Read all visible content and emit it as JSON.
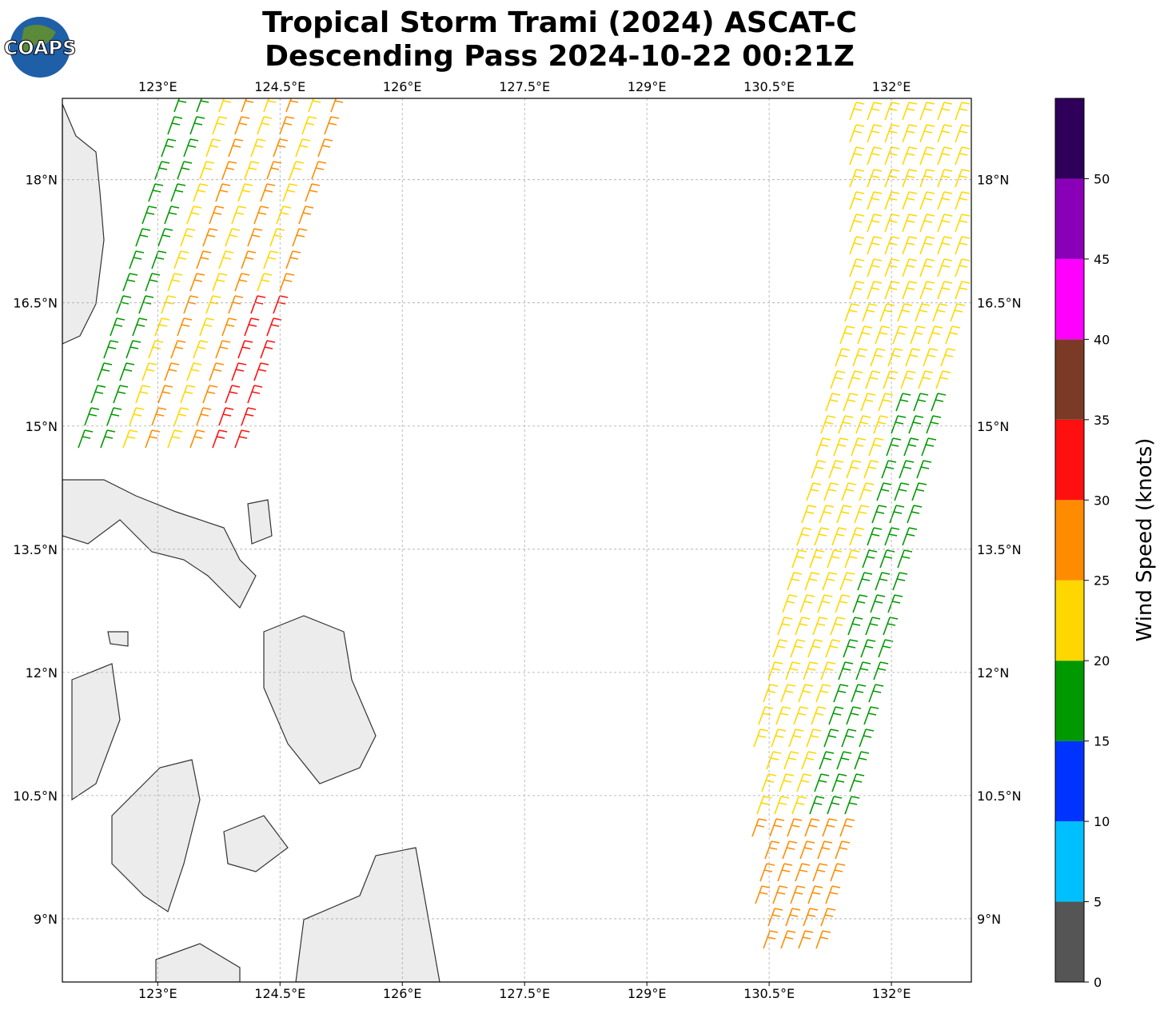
{
  "chart_data": {
    "type": "map",
    "title": [
      "Tropical Storm Trami (2024) ASCAT-C",
      "Descending Pass 2024-10-22 00:21Z"
    ],
    "logo": "COAPS",
    "xlim": [
      121.83,
      132.98
    ],
    "ylim": [
      8.23,
      18.99
    ],
    "xticks": [
      {
        "value": 123,
        "label": "123°E"
      },
      {
        "value": 124.5,
        "label": "124.5°E"
      },
      {
        "value": 126,
        "label": "126°E"
      },
      {
        "value": 127.5,
        "label": "127.5°E"
      },
      {
        "value": 129,
        "label": "129°E"
      },
      {
        "value": 130.5,
        "label": "130.5°E"
      },
      {
        "value": 132,
        "label": "132°E"
      }
    ],
    "yticks": [
      {
        "value": 9,
        "label": "9°N"
      },
      {
        "value": 10.5,
        "label": "10.5°N"
      },
      {
        "value": 12,
        "label": "12°N"
      },
      {
        "value": 13.5,
        "label": "13.5°N"
      },
      {
        "value": 15,
        "label": "15°N"
      },
      {
        "value": 16.5,
        "label": "16.5°N"
      },
      {
        "value": 18,
        "label": "18°N"
      }
    ],
    "grid": true,
    "colorbar": {
      "label": "Wind Speed (knots)",
      "bounds": [
        0,
        5,
        10,
        15,
        20,
        25,
        30,
        35,
        40,
        45,
        50,
        55
      ],
      "colors": [
        "#555555",
        "#00bfff",
        "#0033ff",
        "#009900",
        "#ffd700",
        "#ff8c00",
        "#ff1010",
        "#7b3a25",
        "#ff00ff",
        "#8a00b8",
        "#2e0059"
      ],
      "ticks": [
        0,
        5,
        10,
        15,
        20,
        25,
        30,
        35,
        40,
        45,
        50
      ]
    }
  }
}
